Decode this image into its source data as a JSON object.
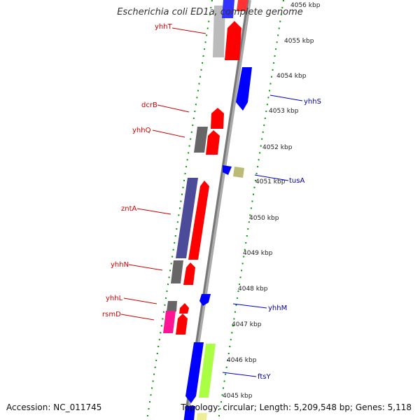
{
  "title": "Escherichia coli ED1a, complete genome",
  "footer": {
    "accession": "Accession: NC_011745",
    "topology": "Topology: circular; Length: 5,209,548 bp; Genes: 5,118"
  },
  "ticks": [
    "4056 kbp",
    "4055 kbp",
    "4054 kbp",
    "4053 kbp",
    "4052 kbp",
    "4051 kbp",
    "4050 kbp",
    "4049 kbp",
    "4048 kbp",
    "4047 kbp",
    "4046 kbp",
    "4045 kbp"
  ],
  "genes_left": [
    "yhhT",
    "dcrB",
    "yhhQ",
    "zntA",
    "yhhN",
    "yhhL",
    "rsmD"
  ],
  "genes_right": [
    "yhhS",
    "tusA",
    "yhhM",
    "ftsY"
  ],
  "colors": {
    "forward": "#ff0000",
    "reverse": "#0000ff",
    "left_label": "#cc0000",
    "right_label": "#000099",
    "backbone": "#999999",
    "scale": "#009900"
  }
}
